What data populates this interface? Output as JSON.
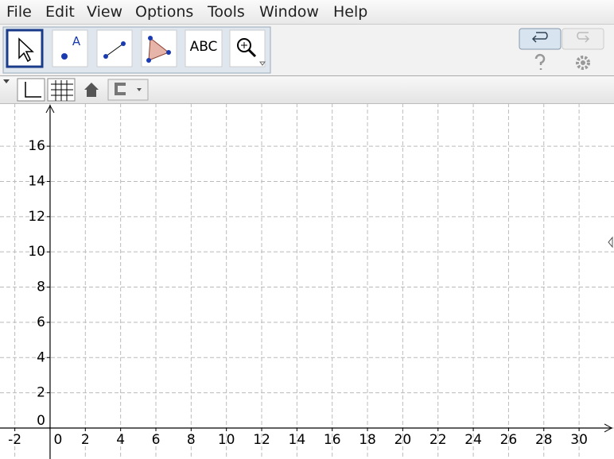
{
  "menu": [
    "File",
    "Edit",
    "View",
    "Options",
    "Tools",
    "Window",
    "Help"
  ],
  "toolbar": {
    "text_tool": "ABC"
  },
  "graphics": {
    "xlim": [
      -2.84,
      31.98
    ],
    "ylim": [
      -1.76,
      18.44
    ],
    "xticks": [
      -2,
      0,
      2,
      4,
      6,
      8,
      10,
      12,
      14,
      16,
      18,
      20,
      22,
      24,
      26,
      28,
      30
    ],
    "yticks": [
      0,
      2,
      4,
      6,
      8,
      10,
      12,
      14,
      16
    ],
    "grid": true
  }
}
